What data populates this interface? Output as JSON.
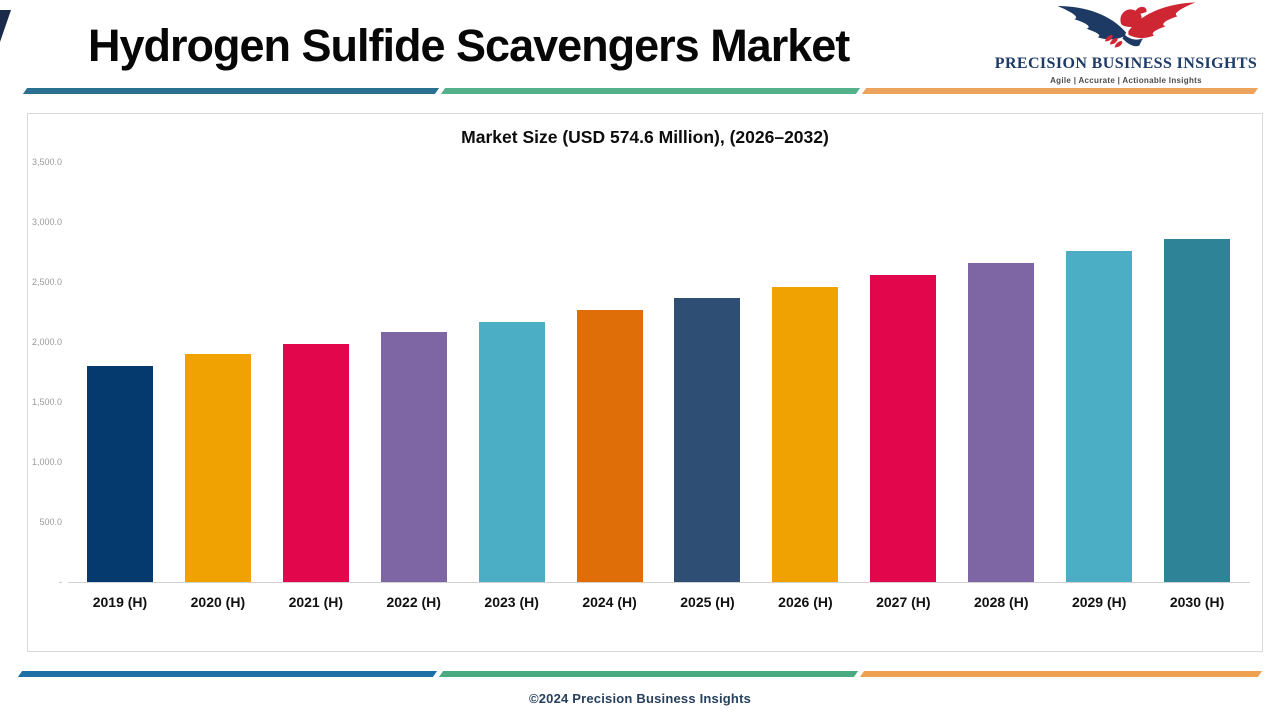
{
  "header": {
    "title": "Hydrogen Sulfide Scavengers Market",
    "logo": {
      "name": "PRECISION BUSINESS INSIGHTS",
      "tagline": "Agile | Accurate | Actionable Insights",
      "navy": "#1c3a63",
      "red": "#cf2633"
    }
  },
  "decor": {
    "top_bar_colors": [
      "#2b6f91",
      "#55b18c",
      "#eca45c"
    ],
    "bottom_bar_colors": [
      "#1d70a6",
      "#4aab80",
      "#f0a14f"
    ]
  },
  "chart_data": {
    "type": "bar",
    "title": "Market Size (USD 574.6 Million), (2026–2032)",
    "categories": [
      "2019 (H)",
      "2020 (H)",
      "2021 (H)",
      "2022 (H)",
      "2023 (H)",
      "2024 (H)",
      "2025 (H)",
      "2026 (H)",
      "2027 (H)",
      "2028 (H)",
      "2029 (H)",
      "2030 (H)"
    ],
    "values": [
      1800,
      1900,
      1980,
      2080,
      2170,
      2270,
      2370,
      2460,
      2560,
      2660,
      2760,
      2860
    ],
    "bar_colors": [
      "#053a6f",
      "#f0a202",
      "#e2074c",
      "#7e66a4",
      "#4caec5",
      "#e06e08",
      "#2f4e74",
      "#f0a202",
      "#e2074c",
      "#7e66a4",
      "#4caec5",
      "#2f8396"
    ],
    "y_ticks": [
      "3,500.0",
      "3,000.0",
      "2,500.0",
      "2,000.0",
      "1,500.0",
      "1,000.0",
      "500.0",
      "-"
    ],
    "ylim": [
      0,
      3500
    ],
    "grid": false,
    "legend": false
  },
  "footer": {
    "copyright": "©2024 Precision Business Insights"
  }
}
